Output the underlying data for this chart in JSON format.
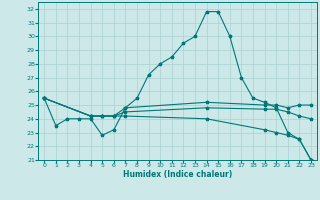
{
  "xlabel": "Humidex (Indice chaleur)",
  "background_color": "#cde8e8",
  "grid_color": "#aad0d0",
  "line_color": "#007878",
  "xlim": [
    -0.5,
    23.5
  ],
  "ylim": [
    21,
    32.5
  ],
  "yticks": [
    21,
    22,
    23,
    24,
    25,
    26,
    27,
    28,
    29,
    30,
    31,
    32
  ],
  "xticks": [
    0,
    1,
    2,
    3,
    4,
    5,
    6,
    7,
    8,
    9,
    10,
    11,
    12,
    13,
    14,
    15,
    16,
    17,
    18,
    19,
    20,
    21,
    22,
    23
  ],
  "lines": [
    {
      "x": [
        0,
        1,
        2,
        3,
        4,
        5,
        6,
        7,
        8,
        9,
        10,
        11,
        12,
        13,
        14,
        15,
        16,
        17,
        18,
        19,
        20,
        21,
        22,
        23
      ],
      "y": [
        25.5,
        23.5,
        24.0,
        24.0,
        24.0,
        22.8,
        23.2,
        24.8,
        25.5,
        27.2,
        28.0,
        28.5,
        29.5,
        30.0,
        31.8,
        31.8,
        30.0,
        27.0,
        25.5,
        25.2,
        24.8,
        23.0,
        22.5,
        21.0
      ]
    },
    {
      "x": [
        0,
        4,
        5,
        6,
        7,
        14,
        19,
        20,
        21,
        22,
        23
      ],
      "y": [
        25.5,
        24.2,
        24.2,
        24.2,
        24.8,
        25.2,
        25.0,
        25.0,
        24.8,
        25.0,
        25.0
      ]
    },
    {
      "x": [
        0,
        4,
        5,
        6,
        7,
        14,
        19,
        20,
        21,
        22,
        23
      ],
      "y": [
        25.5,
        24.2,
        24.2,
        24.2,
        24.5,
        24.8,
        24.7,
        24.7,
        24.5,
        24.2,
        24.0
      ]
    },
    {
      "x": [
        0,
        4,
        5,
        6,
        7,
        14,
        19,
        20,
        21,
        22,
        23
      ],
      "y": [
        25.5,
        24.2,
        24.2,
        24.2,
        24.2,
        24.0,
        23.2,
        23.0,
        22.8,
        22.5,
        21.0
      ]
    }
  ]
}
